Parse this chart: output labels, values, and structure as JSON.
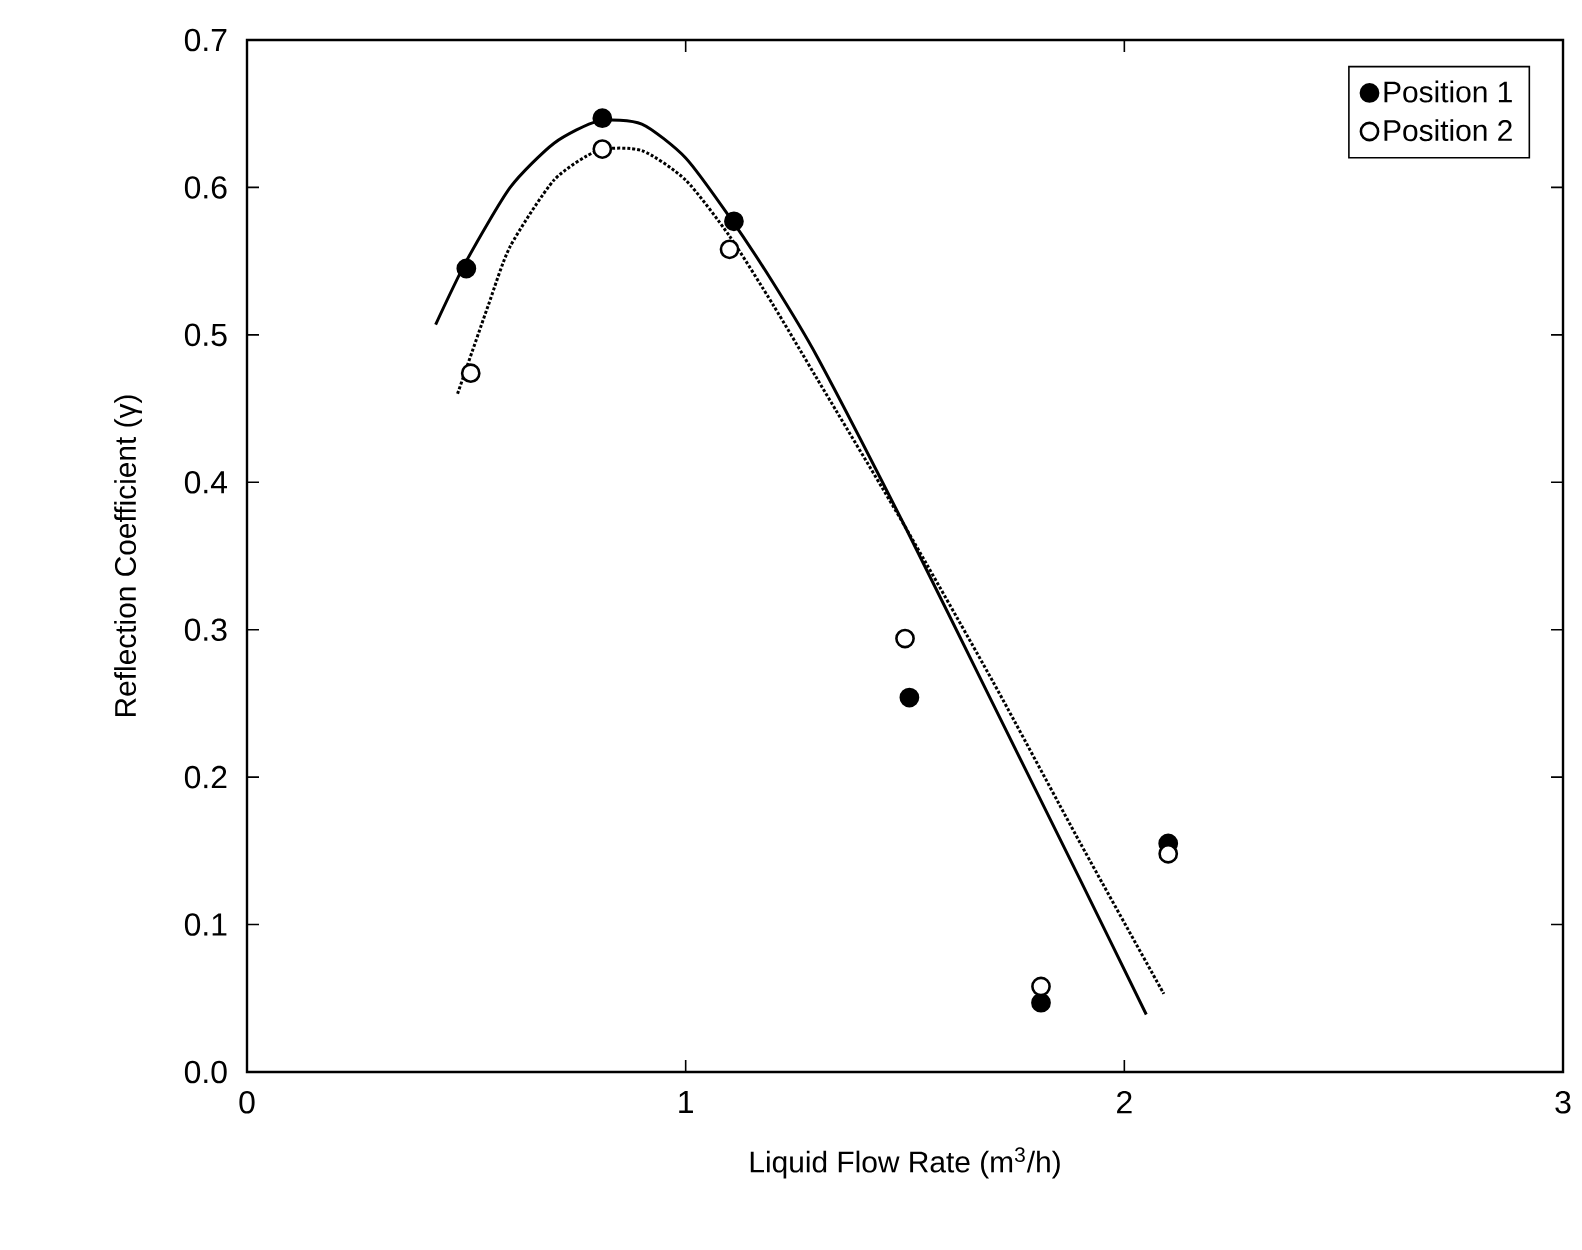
{
  "chart_data": {
    "type": "scatter",
    "xlabel": "Liquid Flow Rate (m$^{3}$/h)",
    "ylabel": "Reflection Coefficient (γ)",
    "xlim": [
      0,
      3
    ],
    "xticks": [
      0,
      1,
      2,
      3
    ],
    "ylim": [
      0,
      0.7
    ],
    "yticks": [
      {
        "value": 0,
        "label": "0.0"
      },
      0.1,
      0.2,
      0.3,
      0.4,
      0.5,
      0.6,
      0.7
    ],
    "legend": "top right",
    "grid": false,
    "series": [
      {
        "name": "Position 1",
        "color": "#000000",
        "marker": "circle",
        "x": [
          0.5,
          0.81,
          1.11,
          1.51,
          1.81,
          2.1
        ],
        "values": [
          0.545,
          0.647,
          0.577,
          0.254,
          0.047,
          0.155
        ]
      },
      {
        "name": "Position 2",
        "color": "#000000",
        "marker": "open circle",
        "x": [
          0.51,
          0.81,
          1.1,
          1.5,
          1.81,
          2.1
        ],
        "values": [
          0.474,
          0.626,
          0.558,
          0.294,
          0.058,
          0.148
        ]
      },
      {
        "type": "line",
        "color": "#000000",
        "marker": "none",
        "line_style": "solid",
        "x": [
          0.43,
          0.5,
          0.6,
          0.7,
          0.8,
          0.9,
          1.0,
          1.1,
          1.2,
          1.3,
          1.5,
          1.7,
          1.9,
          2.05
        ],
        "values": [
          0.507,
          0.55,
          0.6,
          0.63,
          0.645,
          0.643,
          0.62,
          0.58,
          0.535,
          0.485,
          0.37,
          0.25,
          0.13,
          0.039
        ]
      },
      {
        "type": "line",
        "color": "#000000",
        "marker": "none",
        "line_style": "dotted",
        "x": [
          0.48,
          0.55,
          0.6,
          0.7,
          0.8,
          0.9,
          1.0,
          1.1,
          1.2,
          1.3,
          1.5,
          1.7,
          1.9,
          2.09
        ],
        "values": [
          0.46,
          0.52,
          0.56,
          0.605,
          0.625,
          0.625,
          0.605,
          0.567,
          0.52,
          0.47,
          0.37,
          0.265,
          0.155,
          0.053
        ]
      }
    ]
  }
}
